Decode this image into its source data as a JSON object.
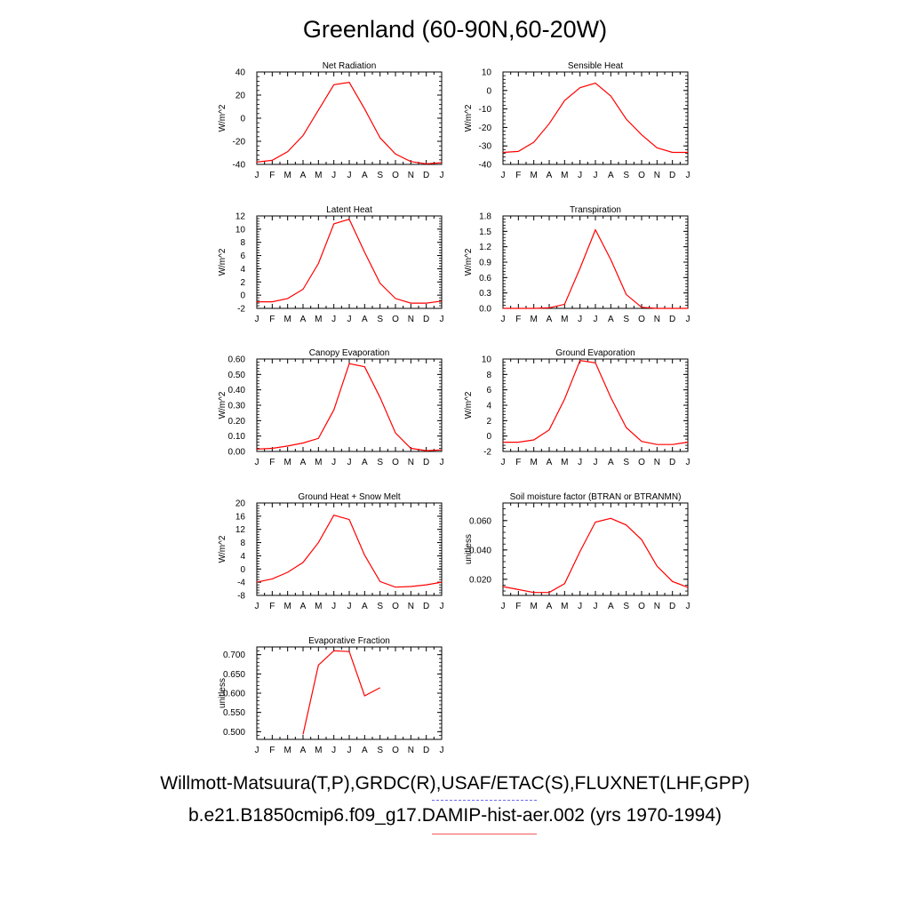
{
  "figure": {
    "title": "Greenland (60-90N,60-20W)",
    "legend": {
      "obs_label": "Willmott-Matsuura(T,P),GRDC(R),USAF/ETAC(S),FLUXNET(LHF,GPP)",
      "model_label": "b.e21.B1850cmip6.f09_g17.DAMIP-hist-aer.002 (yrs 1970-1994)",
      "obs_color": "#6b6bf0",
      "model_color": "#f05a5a"
    }
  },
  "chart_data": [
    {
      "type": "line",
      "title": "Net Radiation",
      "ylabel": "W/m^2",
      "x": [
        "J",
        "F",
        "M",
        "A",
        "M",
        "J",
        "J",
        "A",
        "S",
        "O",
        "N",
        "D",
        "J"
      ],
      "ylim": [
        -40,
        40
      ],
      "yticks": [
        "40",
        "20",
        "0",
        "-20",
        "-40"
      ],
      "ytick_values": [
        40,
        20,
        0,
        -20,
        -40
      ],
      "series": [
        {
          "color": "#ff0000",
          "values": [
            -38,
            -36.5,
            -29,
            -15,
            7,
            29,
            31,
            8,
            -17,
            -31,
            -37.5,
            -39.5,
            -38.5
          ]
        }
      ]
    },
    {
      "type": "line",
      "title": "Sensible Heat",
      "ylabel": "W/m^2",
      "x": [
        "J",
        "F",
        "M",
        "A",
        "M",
        "J",
        "J",
        "A",
        "S",
        "O",
        "N",
        "D",
        "J"
      ],
      "ylim": [
        -40,
        10
      ],
      "yticks": [
        "10",
        "0",
        "-10",
        "-20",
        "-30",
        "-40"
      ],
      "ytick_values": [
        10,
        0,
        -10,
        -20,
        -30,
        -40
      ],
      "series": [
        {
          "color": "#ff0000",
          "values": [
            -33.5,
            -33,
            -28,
            -18,
            -5.5,
            1.5,
            4,
            -3,
            -15.5,
            -24,
            -31,
            -33.5,
            -33.5
          ]
        }
      ]
    },
    {
      "type": "line",
      "title": "Latent Heat",
      "ylabel": "W/m^2",
      "x": [
        "J",
        "F",
        "M",
        "A",
        "M",
        "J",
        "J",
        "A",
        "S",
        "O",
        "N",
        "D",
        "J"
      ],
      "ylim": [
        -2,
        12
      ],
      "yticks": [
        "12",
        "10",
        "8",
        "6",
        "4",
        "2",
        "0",
        "-2"
      ],
      "ytick_values": [
        12,
        10,
        8,
        6,
        4,
        2,
        0,
        -2
      ],
      "series": [
        {
          "color": "#ff0000",
          "values": [
            -1,
            -1,
            -0.5,
            0.9,
            4.8,
            10.8,
            11.5,
            6.5,
            1.8,
            -0.5,
            -1.2,
            -1.2,
            -0.9
          ]
        }
      ]
    },
    {
      "type": "line",
      "title": "Transpiration",
      "ylabel": "W/m^2",
      "x": [
        "J",
        "F",
        "M",
        "A",
        "M",
        "J",
        "J",
        "A",
        "S",
        "O",
        "N",
        "D",
        "J"
      ],
      "ylim": [
        0,
        1.8
      ],
      "yticks": [
        "1.8",
        "1.5",
        "1.2",
        "0.9",
        "0.6",
        "0.3",
        "0.0"
      ],
      "ytick_values": [
        1.8,
        1.5,
        1.2,
        0.9,
        0.6,
        0.3,
        0
      ],
      "series": [
        {
          "color": "#ff0000",
          "values": [
            0,
            0,
            0,
            0.01,
            0.08,
            0.78,
            1.53,
            0.95,
            0.27,
            0.02,
            0,
            0,
            0
          ]
        }
      ]
    },
    {
      "type": "line",
      "title": "Canopy Evaporation",
      "ylabel": "W/m^2",
      "x": [
        "J",
        "F",
        "M",
        "A",
        "M",
        "J",
        "J",
        "A",
        "S",
        "O",
        "N",
        "D",
        "J"
      ],
      "ylim": [
        0,
        0.6
      ],
      "yticks": [
        "0.60",
        "0.50",
        "0.40",
        "0.30",
        "0.20",
        "0.10",
        "0.00"
      ],
      "ytick_values": [
        0.6,
        0.5,
        0.4,
        0.3,
        0.2,
        0.1,
        0
      ],
      "series": [
        {
          "color": "#ff0000",
          "values": [
            0.015,
            0.02,
            0.035,
            0.055,
            0.085,
            0.27,
            0.57,
            0.55,
            0.35,
            0.12,
            0.02,
            0.005,
            0.01
          ]
        }
      ]
    },
    {
      "type": "line",
      "title": "Ground Evaporation",
      "ylabel": "W/m^2",
      "x": [
        "J",
        "F",
        "M",
        "A",
        "M",
        "J",
        "J",
        "A",
        "S",
        "O",
        "N",
        "D",
        "J"
      ],
      "ylim": [
        -2,
        10
      ],
      "yticks": [
        "10",
        "8",
        "6",
        "4",
        "2",
        "0",
        "-2"
      ],
      "ytick_values": [
        10,
        8,
        6,
        4,
        2,
        0,
        -2
      ],
      "series": [
        {
          "color": "#ff0000",
          "values": [
            -0.8,
            -0.8,
            -0.5,
            0.8,
            4.8,
            9.8,
            9.5,
            5,
            1.1,
            -0.7,
            -1.1,
            -1.1,
            -0.8
          ]
        }
      ]
    },
    {
      "type": "line",
      "title": "Ground Heat + Snow Melt",
      "ylabel": "W/m^2",
      "x": [
        "J",
        "F",
        "M",
        "A",
        "M",
        "J",
        "J",
        "A",
        "S",
        "O",
        "N",
        "D",
        "J"
      ],
      "ylim": [
        -8,
        20
      ],
      "yticks": [
        "20",
        "16",
        "12",
        "8",
        "4",
        "0",
        "-4",
        "-8"
      ],
      "ytick_values": [
        20,
        16,
        12,
        8,
        4,
        0,
        -4,
        -8
      ],
      "series": [
        {
          "color": "#ff0000",
          "values": [
            -4,
            -3,
            -1,
            2,
            8,
            16.3,
            15,
            4.2,
            -3.8,
            -5.5,
            -5.3,
            -4.8,
            -4
          ]
        }
      ]
    },
    {
      "type": "line",
      "title": "Soil moisture factor (BTRAN or BTRANMN)",
      "ylabel": "unitless",
      "x": [
        "J",
        "F",
        "M",
        "A",
        "M",
        "J",
        "J",
        "A",
        "S",
        "O",
        "N",
        "D",
        "J"
      ],
      "ylim": [
        0.009,
        0.072
      ],
      "yticks": [
        "0.060",
        "0.040",
        "0.020"
      ],
      "ytick_values": [
        0.06,
        0.04,
        0.02
      ],
      "series": [
        {
          "color": "#ff0000",
          "values": [
            0.015,
            0.013,
            0.011,
            0.011,
            0.017,
            0.039,
            0.059,
            0.0615,
            0.057,
            0.047,
            0.029,
            0.0185,
            0.0145
          ]
        }
      ]
    },
    {
      "type": "line",
      "title": "Evaporative Fraction",
      "ylabel": "unitless",
      "x": [
        "J",
        "F",
        "M",
        "A",
        "M",
        "J",
        "J",
        "A",
        "S",
        "O",
        "N",
        "D",
        "J"
      ],
      "ylim": [
        0.48,
        0.72
      ],
      "yticks": [
        "0.700",
        "0.650",
        "0.600",
        "0.550",
        "0.500"
      ],
      "ytick_values": [
        0.7,
        0.65,
        0.6,
        0.55,
        0.5
      ],
      "series": [
        {
          "color": "#ff0000",
          "values": [
            null,
            null,
            null,
            0.493,
            0.673,
            0.71,
            0.708,
            0.593,
            0.614,
            null,
            null,
            null,
            null
          ]
        }
      ]
    }
  ]
}
